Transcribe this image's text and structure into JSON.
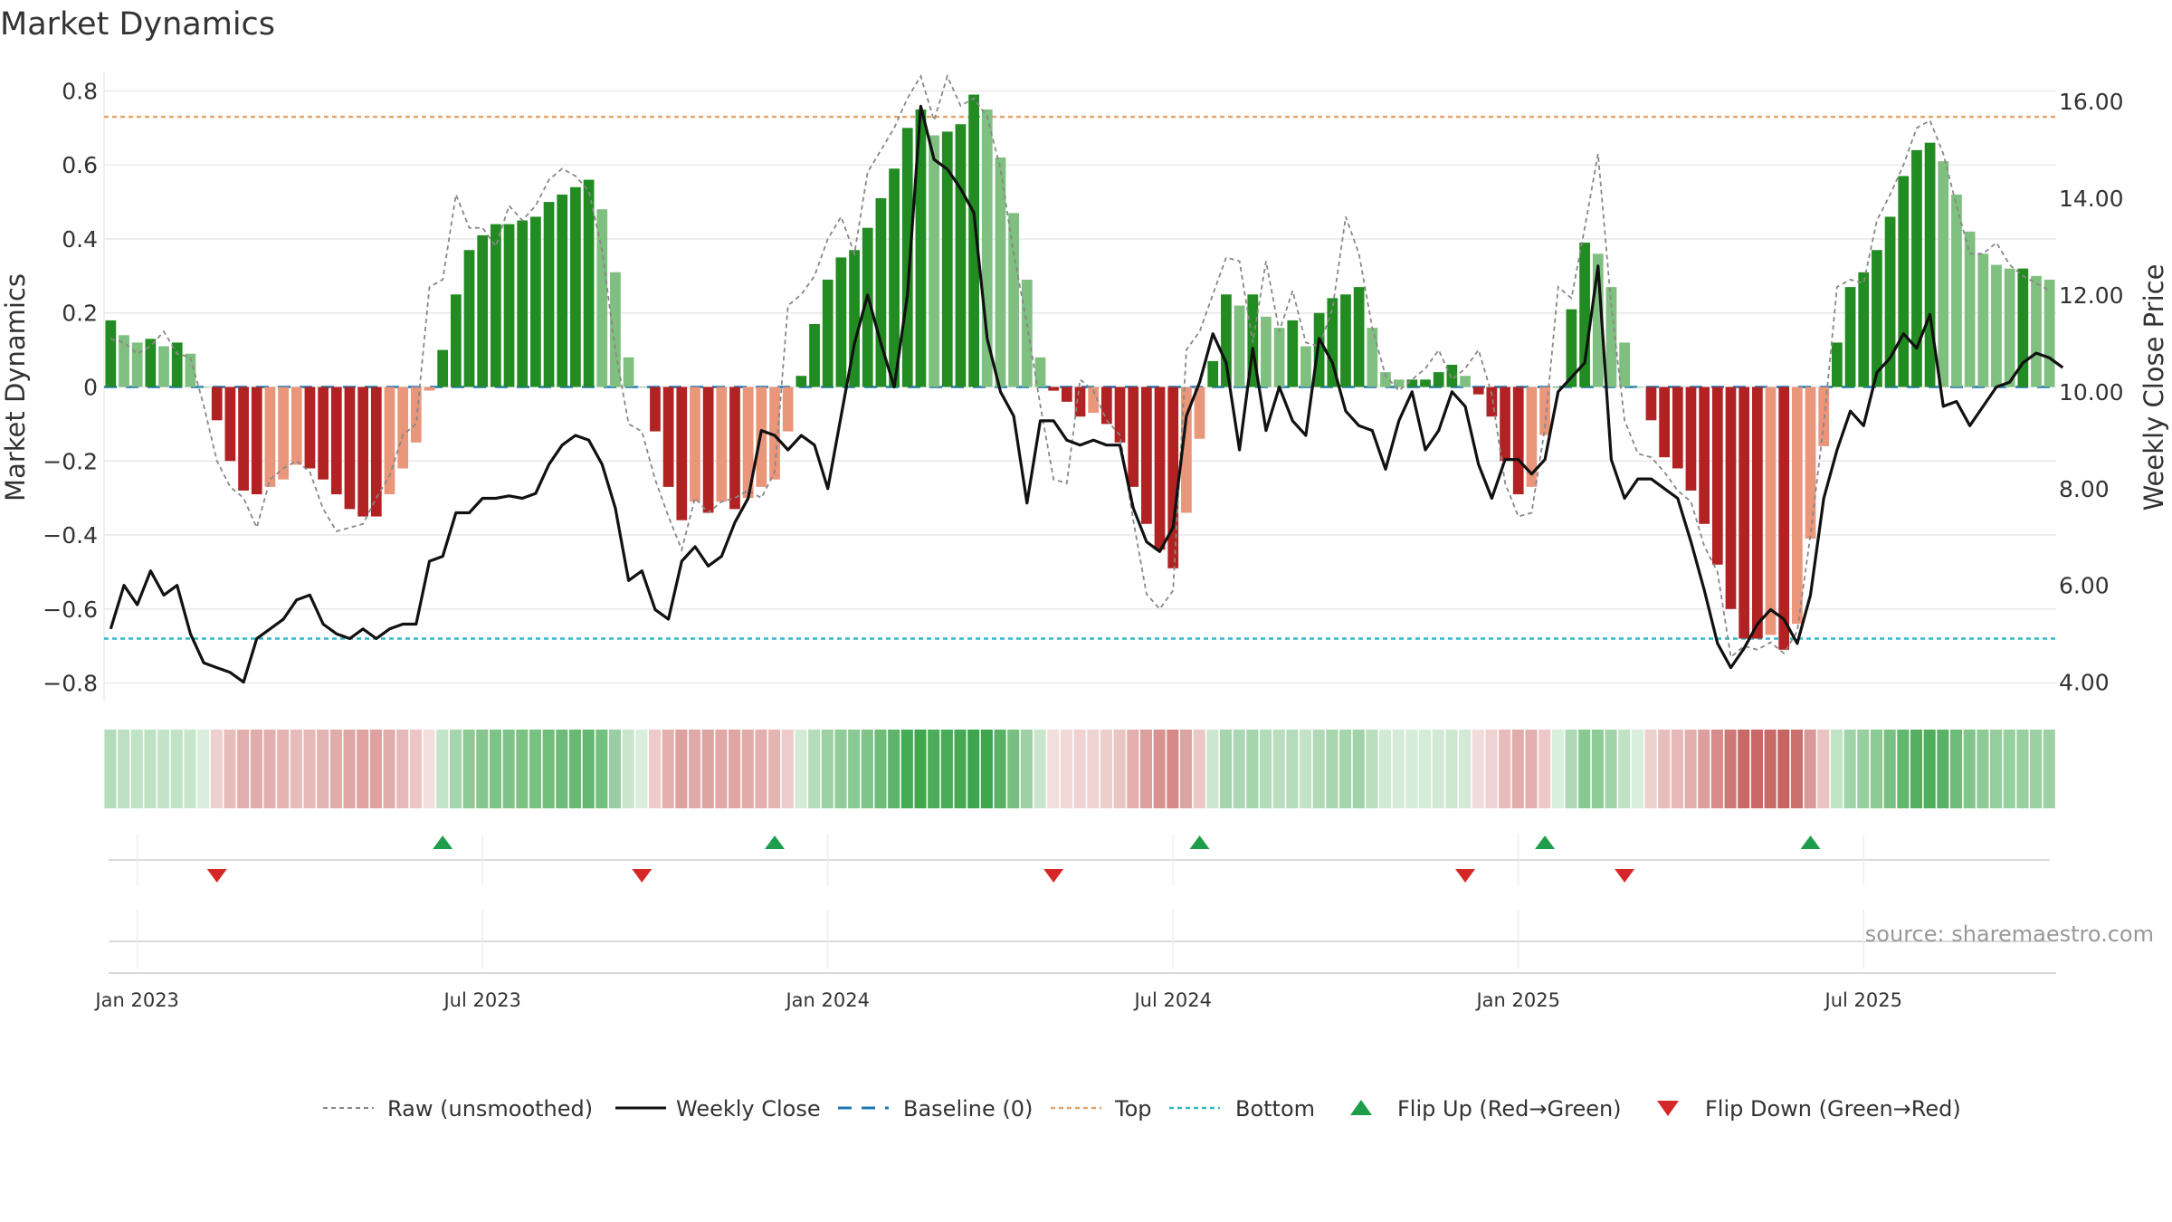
{
  "title": "Market Dynamics",
  "source_note": "source: sharemaestro.com",
  "colors": {
    "strong_green": "#228b22",
    "light_green": "#7fbf7f",
    "strong_red": "#b22222",
    "light_red": "#e9967a",
    "close_line": "#111111",
    "raw_line": "#888888",
    "baseline": "#1f77b4",
    "top": "#e3a36b",
    "bottom": "#30b8c8",
    "flip_up": "#1e9e4a",
    "flip_down": "#d62728"
  },
  "chart_data": {
    "type": "bar",
    "xlabel": "",
    "ylabel": "Market Dynamics",
    "ylabel_right": "Weekly Close Price",
    "ylim": [
      -0.85,
      0.85
    ],
    "ylim_right": [
      3.6,
      16.6
    ],
    "yticks": [
      {
        "v": 0.8,
        "label": "0.8"
      },
      {
        "v": 0.6,
        "label": "0.6"
      },
      {
        "v": 0.4,
        "label": "0.4"
      },
      {
        "v": 0.2,
        "label": "0.2"
      },
      {
        "v": 0.0,
        "label": "0"
      },
      {
        "v": -0.2,
        "label": "−0.2"
      },
      {
        "v": -0.4,
        "label": "−0.4"
      },
      {
        "v": -0.6,
        "label": "−0.6"
      },
      {
        "v": -0.8,
        "label": "−0.8"
      }
    ],
    "yticks_right": [
      {
        "v": 16,
        "label": "16.00"
      },
      {
        "v": 14,
        "label": "14.00"
      },
      {
        "v": 12,
        "label": "12.00"
      },
      {
        "v": 10,
        "label": "10.00"
      },
      {
        "v": 8,
        "label": "8.00"
      },
      {
        "v": 6,
        "label": "6.00"
      },
      {
        "v": 4,
        "label": "4.00"
      }
    ],
    "xticks": [
      {
        "week": 2,
        "label": "Jan 2023"
      },
      {
        "week": 28,
        "label": "Jul 2023"
      },
      {
        "week": 54,
        "label": "Jan 2024"
      },
      {
        "week": 80,
        "label": "Jul 2024"
      },
      {
        "week": 106,
        "label": "Jan 2025"
      },
      {
        "week": 132,
        "label": "Jul 2025"
      }
    ],
    "top_level": 0.73,
    "bottom_level": -0.68,
    "baseline": 0,
    "dynamics": [
      0.18,
      0.14,
      0.12,
      0.13,
      0.11,
      0.12,
      0.09,
      0.0,
      -0.09,
      -0.2,
      -0.28,
      -0.29,
      -0.27,
      -0.25,
      -0.21,
      -0.22,
      -0.25,
      -0.29,
      -0.33,
      -0.35,
      -0.35,
      -0.29,
      -0.22,
      -0.15,
      -0.01,
      0.1,
      0.25,
      0.37,
      0.41,
      0.44,
      0.44,
      0.45,
      0.46,
      0.5,
      0.52,
      0.54,
      0.56,
      0.48,
      0.31,
      0.08,
      0.0,
      -0.12,
      -0.27,
      -0.36,
      -0.31,
      -0.34,
      -0.31,
      -0.33,
      -0.3,
      -0.27,
      -0.25,
      -0.12,
      0.03,
      0.17,
      0.29,
      0.35,
      0.37,
      0.43,
      0.51,
      0.59,
      0.7,
      0.75,
      0.68,
      0.69,
      0.71,
      0.79,
      0.75,
      0.62,
      0.47,
      0.29,
      0.08,
      -0.01,
      -0.04,
      -0.08,
      -0.07,
      -0.1,
      -0.15,
      -0.27,
      -0.37,
      -0.44,
      -0.49,
      -0.34,
      -0.14,
      0.07,
      0.25,
      0.22,
      0.25,
      0.19,
      0.16,
      0.18,
      0.11,
      0.2,
      0.24,
      0.25,
      0.27,
      0.16,
      0.04,
      0.02,
      0.02,
      0.02,
      0.04,
      0.06,
      0.03,
      -0.02,
      -0.08,
      -0.2,
      -0.29,
      -0.27,
      -0.13,
      0.0,
      0.21,
      0.39,
      0.36,
      0.27,
      0.12,
      0.0,
      -0.09,
      -0.19,
      -0.22,
      -0.28,
      -0.37,
      -0.48,
      -0.6,
      -0.68,
      -0.68,
      -0.67,
      -0.71,
      -0.64,
      -0.41,
      -0.16,
      0.12,
      0.27,
      0.31,
      0.37,
      0.46,
      0.57,
      0.64,
      0.66,
      0.61,
      0.52,
      0.42,
      0.36,
      0.33,
      0.32,
      0.32,
      0.3,
      0.29
    ],
    "raw_unsmoothed": [
      0.13,
      0.12,
      0.09,
      0.11,
      0.15,
      0.09,
      0.08,
      -0.05,
      -0.2,
      -0.27,
      -0.3,
      -0.38,
      -0.25,
      -0.22,
      -0.2,
      -0.23,
      -0.33,
      -0.39,
      -0.38,
      -0.37,
      -0.3,
      -0.24,
      -0.13,
      -0.1,
      0.27,
      0.29,
      0.52,
      0.43,
      0.43,
      0.38,
      0.49,
      0.45,
      0.49,
      0.56,
      0.59,
      0.57,
      0.53,
      0.37,
      0.1,
      -0.1,
      -0.12,
      -0.25,
      -0.35,
      -0.44,
      -0.3,
      -0.34,
      -0.31,
      -0.3,
      -0.28,
      -0.3,
      -0.23,
      0.22,
      0.25,
      0.3,
      0.4,
      0.46,
      0.36,
      0.58,
      0.64,
      0.7,
      0.78,
      0.84,
      0.72,
      0.84,
      0.76,
      0.78,
      0.73,
      0.59,
      0.36,
      0.17,
      -0.05,
      -0.25,
      -0.26,
      0.02,
      -0.01,
      -0.09,
      -0.13,
      -0.36,
      -0.56,
      -0.6,
      -0.55,
      0.1,
      0.15,
      0.25,
      0.35,
      0.34,
      0.12,
      0.34,
      0.15,
      0.26,
      0.12,
      0.11,
      0.21,
      0.46,
      0.36,
      0.16,
      0.03,
      -0.01,
      0.02,
      0.05,
      0.1,
      0.02,
      0.05,
      0.1,
      -0.02,
      -0.26,
      -0.35,
      -0.34,
      -0.11,
      0.27,
      0.24,
      0.43,
      0.63,
      0.22,
      -0.09,
      -0.18,
      -0.19,
      -0.23,
      -0.28,
      -0.31,
      -0.43,
      -0.5,
      -0.73,
      -0.7,
      -0.71,
      -0.69,
      -0.72,
      -0.66,
      -0.4,
      -0.1,
      0.27,
      0.29,
      0.28,
      0.45,
      0.52,
      0.6,
      0.7,
      0.72,
      0.63,
      0.49,
      0.36,
      0.36,
      0.39,
      0.33,
      0.3,
      0.28,
      0.26
    ],
    "weekly_close": [
      5.1,
      6.0,
      5.6,
      6.3,
      5.8,
      6.0,
      5.0,
      4.4,
      4.3,
      4.2,
      4.0,
      4.9,
      5.1,
      5.3,
      5.7,
      5.8,
      5.2,
      5.0,
      4.9,
      5.1,
      4.9,
      5.1,
      5.2,
      5.2,
      6.5,
      6.6,
      7.5,
      7.5,
      7.8,
      7.8,
      7.85,
      7.8,
      7.9,
      8.5,
      8.9,
      9.1,
      9.0,
      8.5,
      7.6,
      6.1,
      6.3,
      5.5,
      5.3,
      6.5,
      6.8,
      6.4,
      6.6,
      7.3,
      7.8,
      9.2,
      9.1,
      8.8,
      9.1,
      8.9,
      8.0,
      9.5,
      11.0,
      12.0,
      11.0,
      10.1,
      12.0,
      15.9,
      14.8,
      14.6,
      14.2,
      13.7,
      11.1,
      10.0,
      9.5,
      7.7,
      9.4,
      9.4,
      9.0,
      8.9,
      9.0,
      8.9,
      8.9,
      7.6,
      6.9,
      6.7,
      7.2,
      9.5,
      10.2,
      11.2,
      10.6,
      8.8,
      10.9,
      9.2,
      10.1,
      9.4,
      9.1,
      11.1,
      10.6,
      9.6,
      9.3,
      9.2,
      8.4,
      9.4,
      10.0,
      8.8,
      9.2,
      10.0,
      9.7,
      8.5,
      7.8,
      8.6,
      8.6,
      8.3,
      8.6,
      10.0,
      10.3,
      10.6,
      12.6,
      8.6,
      7.8,
      8.2,
      8.2,
      8.0,
      7.8,
      6.9,
      5.9,
      4.8,
      4.3,
      4.7,
      5.2,
      5.5,
      5.3,
      4.8,
      5.8,
      7.8,
      8.8,
      9.6,
      9.3,
      10.4,
      10.7,
      11.2,
      10.9,
      11.6,
      9.7,
      9.8,
      9.3,
      9.7,
      10.1,
      10.2,
      10.6,
      10.8,
      10.7,
      10.5
    ],
    "band_counts": {
      "start_green": 4,
      "mid_pattern": "dynamics-driven"
    },
    "flip_up_weeks": [
      25,
      50,
      82,
      108,
      128
    ],
    "flip_down_weeks": [
      8,
      40,
      71,
      102,
      114
    ],
    "legend": [
      {
        "key": "raw",
        "label": "Raw (unsmoothed)"
      },
      {
        "key": "close",
        "label": "Weekly Close"
      },
      {
        "key": "baseline",
        "label": "Baseline (0)"
      },
      {
        "key": "top",
        "label": "Top"
      },
      {
        "key": "bottom",
        "label": "Bottom"
      },
      {
        "key": "flipup",
        "label": "Flip Up (Red→Green)"
      },
      {
        "key": "flipdown",
        "label": "Flip Down (Green→Red)"
      }
    ]
  }
}
